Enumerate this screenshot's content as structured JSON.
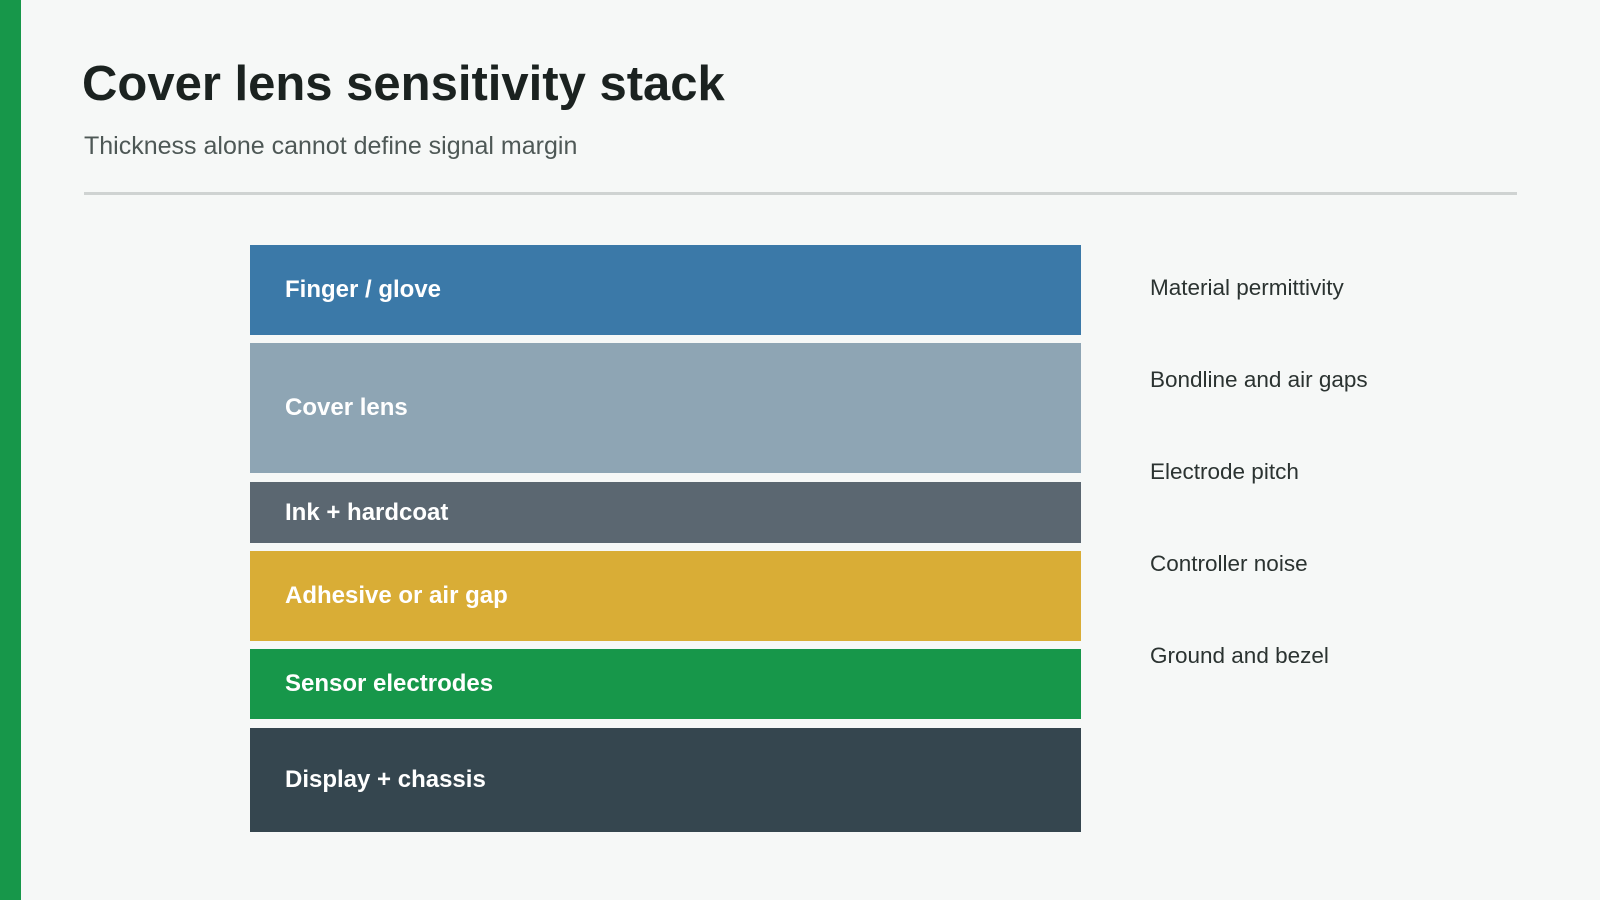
{
  "header": {
    "title": "Cover lens sensitivity stack",
    "subtitle": "Thickness alone cannot define signal margin"
  },
  "stack": {
    "layers": [
      {
        "label": "Finger / glove"
      },
      {
        "label": "Cover lens"
      },
      {
        "label": "Ink + hardcoat"
      },
      {
        "label": "Adhesive or air gap"
      },
      {
        "label": "Sensor electrodes"
      },
      {
        "label": "Display + chassis"
      }
    ]
  },
  "factors": [
    "Material permittivity",
    "Bondline and air gaps",
    "Electrode pitch",
    "Controller noise",
    "Ground and bezel"
  ]
}
